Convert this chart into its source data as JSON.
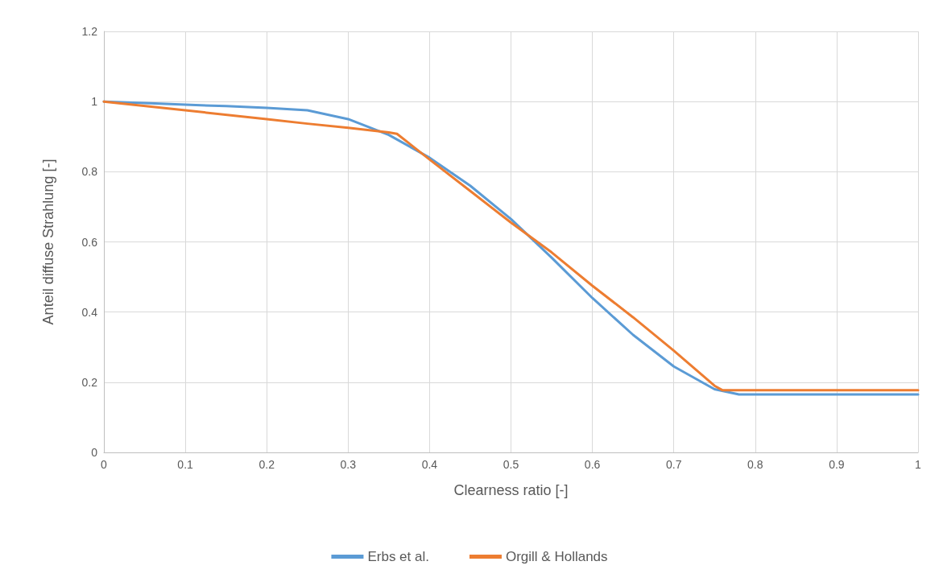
{
  "chart_data": {
    "type": "line",
    "xlabel": "Clearness ratio [-]",
    "ylabel": "Anteil diffuse Strahlung [-]",
    "xlim": [
      0,
      1
    ],
    "xticks": [
      0,
      0.1,
      0.2,
      0.3,
      0.4,
      0.5,
      0.6,
      0.7,
      0.8,
      0.9,
      1
    ],
    "ylim": [
      0,
      1.2
    ],
    "yticks": [
      0,
      0.2,
      0.4,
      0.6,
      0.8,
      1,
      1.2
    ],
    "grid": true,
    "legend": "bottom",
    "marker": "none",
    "line_style": "solid",
    "series": [
      {
        "name": "Erbs et al.",
        "color": "#5b9bd5",
        "x": [
          0,
          0.05,
          0.1,
          0.15,
          0.2,
          0.25,
          0.3,
          0.35,
          0.4,
          0.45,
          0.5,
          0.55,
          0.6,
          0.65,
          0.7,
          0.75,
          0.78,
          1
        ],
        "values": [
          1,
          0.996,
          0.991,
          0.987,
          0.982,
          0.975,
          0.95,
          0.905,
          0.84,
          0.76,
          0.665,
          0.555,
          0.44,
          0.335,
          0.245,
          0.18,
          0.165,
          0.165
        ]
      },
      {
        "name": "Orgill & Hollands",
        "color": "#ed7d31",
        "x": [
          0,
          0.1,
          0.2,
          0.25,
          0.3,
          0.35,
          0.36,
          0.4,
          0.45,
          0.5,
          0.55,
          0.6,
          0.65,
          0.7,
          0.75,
          0.76,
          1
        ],
        "values": [
          1,
          0.975,
          0.95,
          0.937,
          0.925,
          0.912,
          0.908,
          0.835,
          0.745,
          0.655,
          0.57,
          0.475,
          0.385,
          0.29,
          0.19,
          0.177,
          0.177
        ]
      }
    ]
  }
}
